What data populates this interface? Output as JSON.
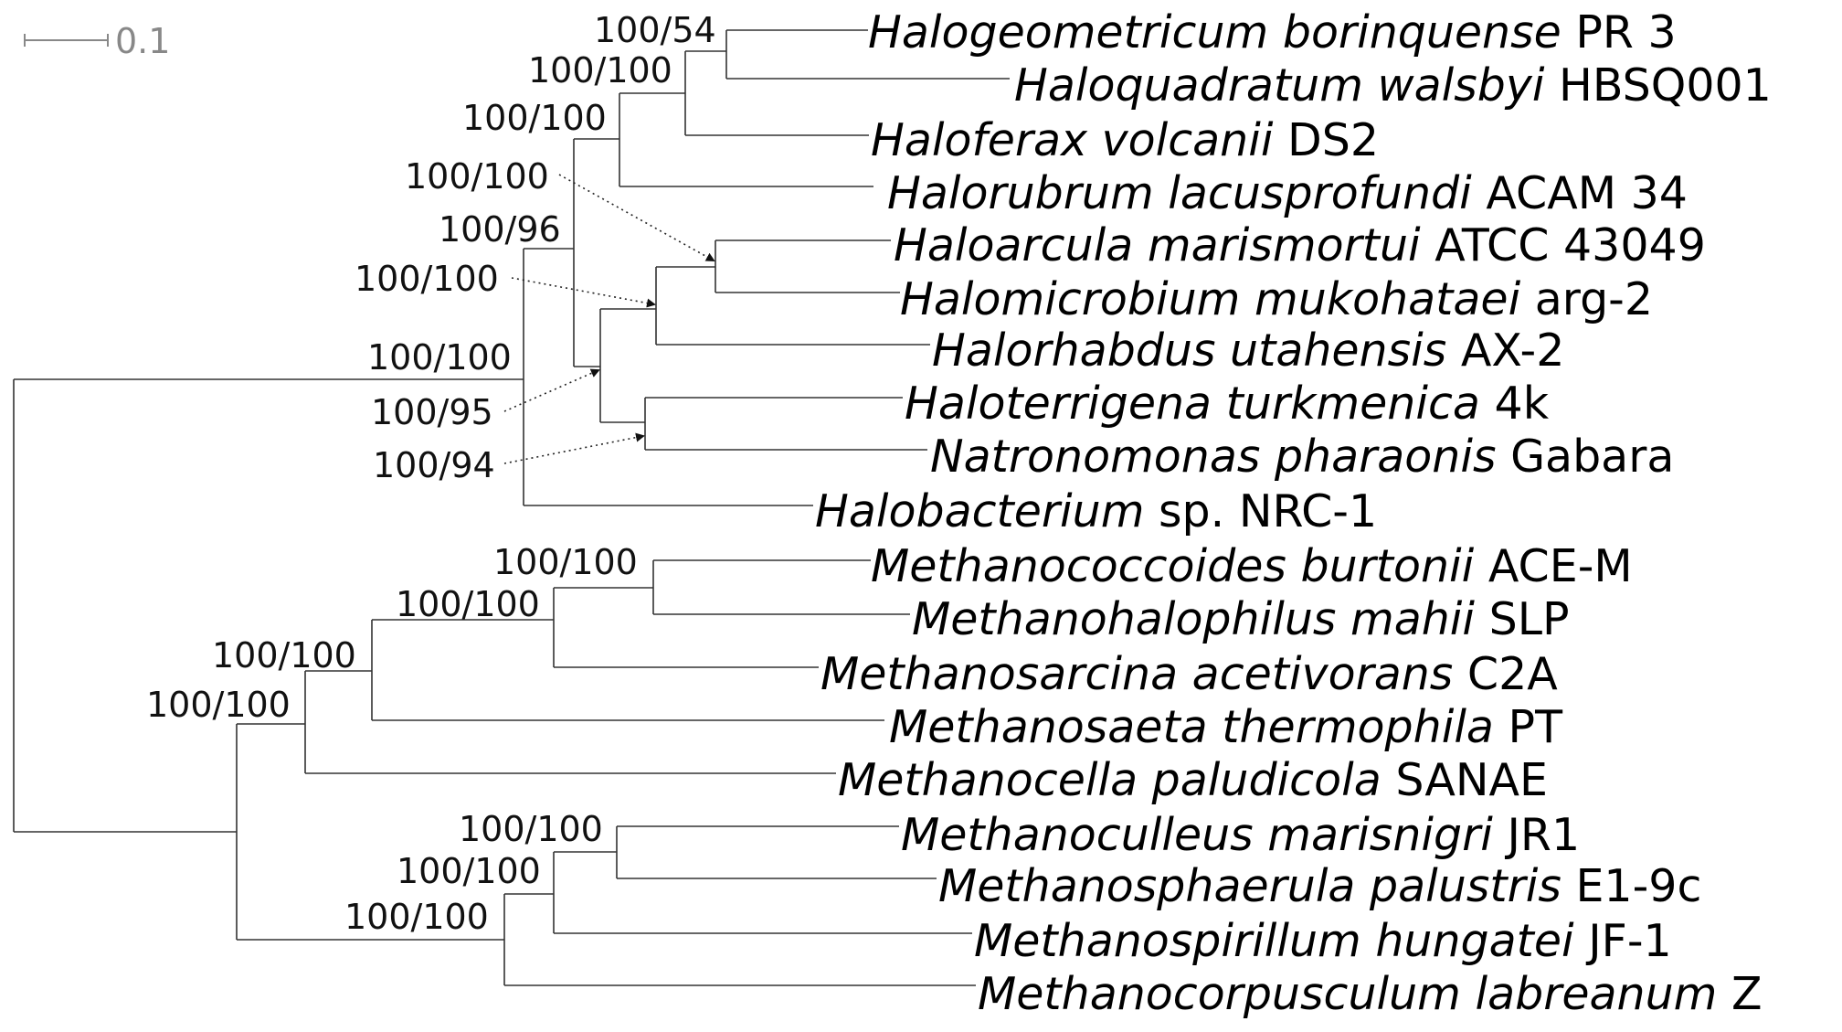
{
  "scale_bar": {
    "label": "0.1"
  },
  "taxa": [
    {
      "id": "t1",
      "italic": "Halogeometricum borinquense",
      "strain": "PR 3"
    },
    {
      "id": "t2",
      "italic": "Haloquadratum walsbyi",
      "strain": "HBSQ001"
    },
    {
      "id": "t3",
      "italic": "Haloferax volcanii",
      "strain": "DS2"
    },
    {
      "id": "t4",
      "italic": "Halorubrum lacusprofundi",
      "strain": "ACAM 34"
    },
    {
      "id": "t5",
      "italic": "Haloarcula marismortui",
      "strain": "ATCC 43049"
    },
    {
      "id": "t6",
      "italic": "Halomicrobium mukohataei",
      "strain": "arg-2"
    },
    {
      "id": "t7",
      "italic": "Halorhabdus utahensis",
      "strain": "AX-2"
    },
    {
      "id": "t8",
      "italic": "Haloterrigena turkmenica",
      "strain": "4k"
    },
    {
      "id": "t9",
      "italic": "Natronomonas pharaonis",
      "strain": "Gabara"
    },
    {
      "id": "t10",
      "italic": "Halobacterium",
      "strain": "sp. NRC-1"
    },
    {
      "id": "t11",
      "italic": "Methanococcoides burtonii",
      "strain": "ACE-M"
    },
    {
      "id": "t12",
      "italic": "Methanohalophilus mahii",
      "strain": "SLP"
    },
    {
      "id": "t13",
      "italic": "Methanosarcina acetivorans",
      "strain": "C2A"
    },
    {
      "id": "t14",
      "italic": "Methanosaeta thermophila",
      "strain": "PT"
    },
    {
      "id": "t15",
      "italic": "Methanocella paludicola",
      "strain": "SANAE"
    },
    {
      "id": "t16",
      "italic": "Methanoculleus marisnigri",
      "strain": "JR1"
    },
    {
      "id": "t17",
      "italic": "Methanosphaerula palustris",
      "strain": "E1-9c"
    },
    {
      "id": "t18",
      "italic": "Methanospirillum hungatei",
      "strain": "JF-1"
    },
    {
      "id": "t19",
      "italic": "Methanocorpusculum labreanum",
      "strain": "Z"
    }
  ],
  "support_values": [
    {
      "id": "s_t1t2",
      "label": "100/54"
    },
    {
      "id": "s_t1t3",
      "label": "100/100"
    },
    {
      "id": "s_t1t4",
      "label": "100/100"
    },
    {
      "id": "s_t5t6",
      "label": "100/100"
    },
    {
      "id": "s_halo_minus",
      "label": "100/96"
    },
    {
      "id": "s_t5t7",
      "label": "100/100"
    },
    {
      "id": "s_root",
      "label": "100/100"
    },
    {
      "id": "s_t5t9",
      "label": "100/95"
    },
    {
      "id": "s_t8t9",
      "label": "100/94"
    },
    {
      "id": "s_t11t12",
      "label": "100/100"
    },
    {
      "id": "s_t11t13",
      "label": "100/100"
    },
    {
      "id": "s_t11t14",
      "label": "100/100"
    },
    {
      "id": "s_t11t15",
      "label": "100/100"
    },
    {
      "id": "s_t16t17",
      "label": "100/100"
    },
    {
      "id": "s_t16t18",
      "label": "100/100"
    },
    {
      "id": "s_t16t19",
      "label": "100/100"
    }
  ]
}
